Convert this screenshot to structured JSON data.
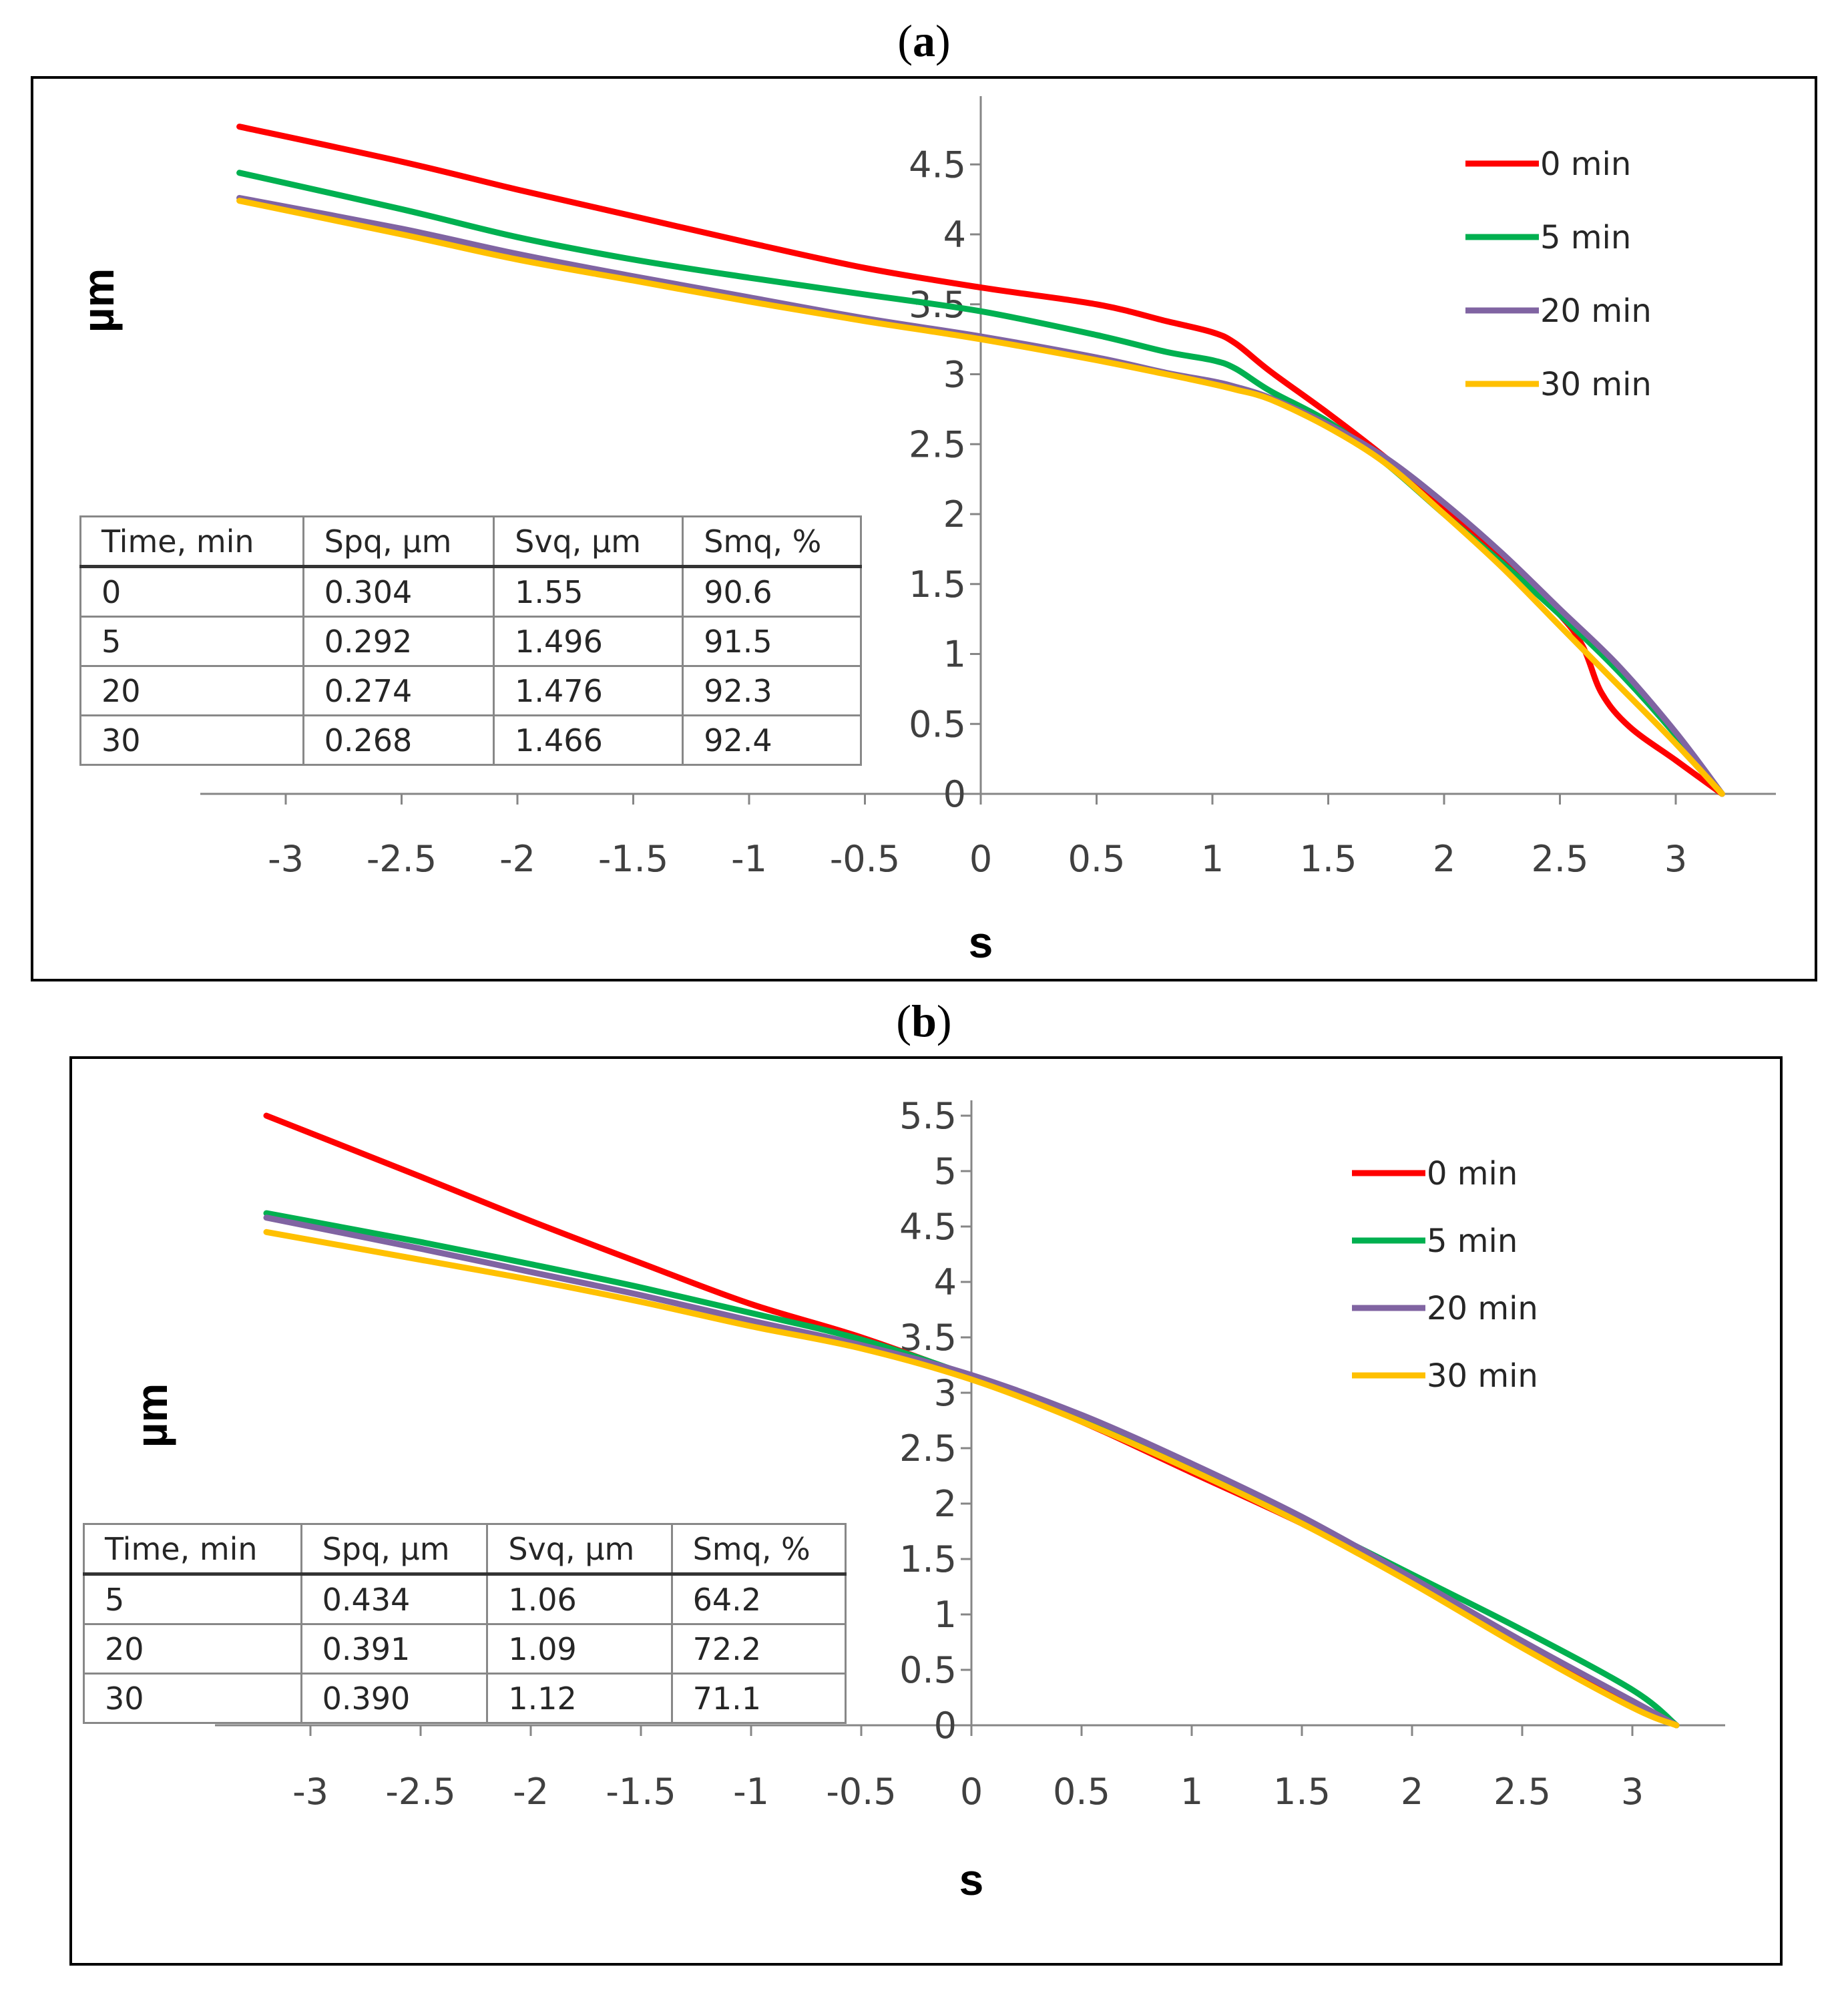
{
  "chart_data": [
    {
      "panel": "a",
      "type": "line",
      "title": "",
      "xlabel": "s",
      "ylabel": "µm",
      "xlim": [
        -3.3,
        3.4
      ],
      "ylim": [
        0,
        4.9
      ],
      "xticks": [
        "-3",
        "-2.5",
        "-2",
        "-1.5",
        "-1",
        "-0.5",
        "0",
        "0.5",
        "1",
        "1.5",
        "2",
        "2.5",
        "3"
      ],
      "yticks": [
        "0",
        "0.5",
        "1",
        "1.5",
        "2",
        "2.5",
        "3",
        "3.5",
        "4",
        "4.5"
      ],
      "series": [
        {
          "name": "0 min",
          "color": "#ff0000",
          "points": [
            [
              -3.2,
              4.77
            ],
            [
              -2.5,
              4.52
            ],
            [
              -2.0,
              4.32
            ],
            [
              -1.5,
              4.13
            ],
            [
              -1.0,
              3.94
            ],
            [
              -0.5,
              3.76
            ],
            [
              0,
              3.62
            ],
            [
              0.5,
              3.5
            ],
            [
              0.8,
              3.38
            ],
            [
              1.0,
              3.3
            ],
            [
              1.1,
              3.22
            ],
            [
              1.25,
              3.02
            ],
            [
              1.5,
              2.72
            ],
            [
              1.75,
              2.4
            ],
            [
              2.0,
              2.05
            ],
            [
              2.25,
              1.68
            ],
            [
              2.5,
              1.28
            ],
            [
              2.6,
              1.05
            ],
            [
              2.68,
              0.72
            ],
            [
              2.8,
              0.48
            ],
            [
              3.0,
              0.24
            ],
            [
              3.2,
              0
            ]
          ]
        },
        {
          "name": "5 min",
          "color": "#00b050",
          "points": [
            [
              -3.2,
              4.44
            ],
            [
              -2.5,
              4.18
            ],
            [
              -2.0,
              3.98
            ],
            [
              -1.5,
              3.82
            ],
            [
              -1.0,
              3.69
            ],
            [
              -0.5,
              3.57
            ],
            [
              0,
              3.45
            ],
            [
              0.5,
              3.28
            ],
            [
              0.8,
              3.16
            ],
            [
              1.0,
              3.1
            ],
            [
              1.1,
              3.04
            ],
            [
              1.25,
              2.88
            ],
            [
              1.5,
              2.66
            ],
            [
              1.75,
              2.36
            ],
            [
              2.0,
              2.0
            ],
            [
              2.25,
              1.65
            ],
            [
              2.5,
              1.28
            ],
            [
              2.75,
              0.88
            ],
            [
              3.0,
              0.42
            ],
            [
              3.2,
              0
            ]
          ]
        },
        {
          "name": "20 min",
          "color": "#8064a2",
          "points": [
            [
              -3.2,
              4.26
            ],
            [
              -2.5,
              4.04
            ],
            [
              -2.0,
              3.86
            ],
            [
              -1.5,
              3.7
            ],
            [
              -1.0,
              3.55
            ],
            [
              -0.5,
              3.4
            ],
            [
              0,
              3.27
            ],
            [
              0.5,
              3.12
            ],
            [
              0.8,
              3.01
            ],
            [
              1.0,
              2.95
            ],
            [
              1.1,
              2.91
            ],
            [
              1.25,
              2.83
            ],
            [
              1.5,
              2.64
            ],
            [
              1.75,
              2.4
            ],
            [
              2.0,
              2.08
            ],
            [
              2.25,
              1.72
            ],
            [
              2.5,
              1.32
            ],
            [
              2.75,
              0.92
            ],
            [
              3.0,
              0.44
            ],
            [
              3.2,
              0
            ]
          ]
        },
        {
          "name": "30 min",
          "color": "#ffc000",
          "points": [
            [
              -3.2,
              4.24
            ],
            [
              -2.5,
              4.0
            ],
            [
              -2.0,
              3.82
            ],
            [
              -1.5,
              3.67
            ],
            [
              -1.0,
              3.52
            ],
            [
              -0.5,
              3.38
            ],
            [
              0,
              3.25
            ],
            [
              0.5,
              3.1
            ],
            [
              0.8,
              3.0
            ],
            [
              1.0,
              2.93
            ],
            [
              1.1,
              2.89
            ],
            [
              1.25,
              2.82
            ],
            [
              1.5,
              2.62
            ],
            [
              1.75,
              2.36
            ],
            [
              2.0,
              2.0
            ],
            [
              2.25,
              1.62
            ],
            [
              2.5,
              1.2
            ],
            [
              2.75,
              0.78
            ],
            [
              3.0,
              0.36
            ],
            [
              3.2,
              0
            ]
          ]
        }
      ]
    },
    {
      "panel": "b",
      "type": "line",
      "title": "",
      "xlabel": "s",
      "ylabel": "µm",
      "xlim": [
        -3.4,
        3.4
      ],
      "ylim": [
        0,
        5.6
      ],
      "xticks": [
        "-3",
        "-2.5",
        "-2",
        "-1.5",
        "-1",
        "-0.5",
        "0",
        "0.5",
        "1",
        "1.5",
        "2",
        "2.5",
        "3"
      ],
      "yticks": [
        "0",
        "0.5",
        "1",
        "1.5",
        "2",
        "2.5",
        "3",
        "3.5",
        "4",
        "4.5",
        "5",
        "5.5"
      ],
      "series": [
        {
          "name": "0 min",
          "color": "#ff0000",
          "points": [
            [
              -3.2,
              5.5
            ],
            [
              -2.5,
              4.95
            ],
            [
              -2.0,
              4.55
            ],
            [
              -1.5,
              4.17
            ],
            [
              -1.0,
              3.8
            ],
            [
              -0.5,
              3.5
            ],
            [
              0,
              3.14
            ],
            [
              0.5,
              2.74
            ],
            [
              1.0,
              2.28
            ],
            [
              1.5,
              1.82
            ],
            [
              2.0,
              1.3
            ],
            [
              2.5,
              0.72
            ],
            [
              3.0,
              0.2
            ],
            [
              3.2,
              0
            ]
          ]
        },
        {
          "name": "5 min",
          "color": "#00b050",
          "points": [
            [
              -3.2,
              4.62
            ],
            [
              -2.5,
              4.36
            ],
            [
              -2.0,
              4.16
            ],
            [
              -1.5,
              3.95
            ],
            [
              -1.0,
              3.72
            ],
            [
              -0.5,
              3.48
            ],
            [
              0,
              3.15
            ],
            [
              0.5,
              2.78
            ],
            [
              1.0,
              2.35
            ],
            [
              1.5,
              1.86
            ],
            [
              2.0,
              1.36
            ],
            [
              2.5,
              0.86
            ],
            [
              3.0,
              0.32
            ],
            [
              3.2,
              0
            ]
          ]
        },
        {
          "name": "20 min",
          "color": "#8064a2",
          "points": [
            [
              -3.2,
              4.58
            ],
            [
              -2.5,
              4.3
            ],
            [
              -2.0,
              4.09
            ],
            [
              -1.5,
              3.88
            ],
            [
              -1.0,
              3.65
            ],
            [
              -0.5,
              3.43
            ],
            [
              0,
              3.16
            ],
            [
              0.5,
              2.8
            ],
            [
              1.0,
              2.36
            ],
            [
              1.5,
              1.88
            ],
            [
              2.0,
              1.33
            ],
            [
              2.5,
              0.76
            ],
            [
              3.0,
              0.22
            ],
            [
              3.2,
              0
            ]
          ]
        },
        {
          "name": "30 min",
          "color": "#ffc000",
          "points": [
            [
              -3.2,
              4.45
            ],
            [
              -2.5,
              4.2
            ],
            [
              -2.0,
              4.02
            ],
            [
              -1.5,
              3.82
            ],
            [
              -1.0,
              3.6
            ],
            [
              -0.5,
              3.4
            ],
            [
              0,
              3.12
            ],
            [
              0.5,
              2.74
            ],
            [
              1.0,
              2.3
            ],
            [
              1.5,
              1.82
            ],
            [
              2.0,
              1.28
            ],
            [
              2.5,
              0.7
            ],
            [
              3.0,
              0.16
            ],
            [
              3.2,
              0
            ]
          ]
        }
      ]
    }
  ],
  "panels": {
    "a": {
      "label_open": "(",
      "label_letter": "a",
      "label_close": ")",
      "table": {
        "headers": [
          "Time, min",
          "Spq, µm",
          "Svq, µm",
          "Smq, %"
        ],
        "rows": [
          [
            "0",
            "0.304",
            "1.55",
            "90.6"
          ],
          [
            "5",
            "0.292",
            "1.496",
            "91.5"
          ],
          [
            "20",
            "0.274",
            "1.476",
            "92.3"
          ],
          [
            "30",
            "0.268",
            "1.466",
            "92.4"
          ]
        ]
      }
    },
    "b": {
      "label_open": "(",
      "label_letter": "b",
      "label_close": ")",
      "table": {
        "headers": [
          "Time, min",
          "Spq, µm",
          "Svq, µm",
          "Smq, %"
        ],
        "rows": [
          [
            "5",
            "0.434",
            "1.06",
            "64.2"
          ],
          [
            "20",
            "0.391",
            "1.09",
            "72.2"
          ],
          [
            "30",
            "0.390",
            "1.12",
            "71.1"
          ]
        ]
      }
    }
  }
}
